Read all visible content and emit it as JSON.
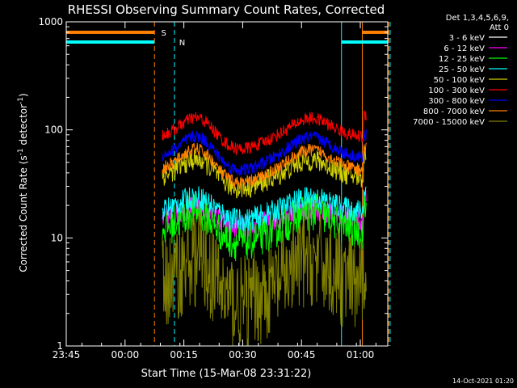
{
  "chart_data": {
    "type": "line",
    "title": "RHESSI Observing Summary Count Rates, Corrected",
    "xlabel": "Start Time (15-Mar-08 23:31:22)",
    "ylabel_main": "Corrected Count Rate (s",
    "ylabel_sup1": "-1",
    "ylabel_mid": " detector",
    "ylabel_sup2": "-1",
    "ylabel_end": ")",
    "yscale": "log",
    "ylim": [
      1,
      1000
    ],
    "xlim_minutes": [
      -24,
      58
    ],
    "xticks": [
      {
        "t": 0,
        "label": "23:45"
      },
      {
        "t": 15,
        "label": "00:00"
      },
      {
        "t": 30,
        "label": "00:15"
      },
      {
        "t": 45,
        "label": "00:30"
      },
      {
        "t": 60,
        "label": "00:45"
      },
      {
        "t": 75,
        "label": "01:00"
      }
    ],
    "yticks": [
      {
        "v": 1,
        "label": "1"
      },
      {
        "v": 10,
        "label": "10"
      },
      {
        "v": 100,
        "label": "100"
      },
      {
        "v": 1000,
        "label": "1000"
      }
    ],
    "legend_header": [
      "Det 1,3,4,5,6,9,",
      "Att 0"
    ],
    "legend_placement": "right",
    "flags": [
      {
        "label": "S",
        "color": "#ff8000",
        "level": 800
      },
      {
        "label": "N",
        "color": "#00ffff",
        "level": 650
      }
    ],
    "series": [
      {
        "name": "3 - 6 keV",
        "color": "#ffffff",
        "trace_color": "#000000",
        "base": 10,
        "amp": 1.6,
        "noise": 0.45
      },
      {
        "name": "6 - 12 keV",
        "color": "#ff00ff",
        "base": 14.5,
        "amp": 1.3,
        "noise": 0.22
      },
      {
        "name": "12 - 25 keV",
        "color": "#00ff00",
        "base": 11.5,
        "amp": 1.5,
        "noise": 0.35
      },
      {
        "name": "25 - 50 keV",
        "color": "#00ffff",
        "base": 17.5,
        "amp": 1.35,
        "noise": 0.22
      },
      {
        "name": "50 - 100 keV",
        "color": "#d0d000",
        "base": 36,
        "amp": 1.45,
        "noise": 0.2
      },
      {
        "name": "100 - 300 keV",
        "color": "#ff0000",
        "base": 85,
        "amp": 1.5,
        "noise": 0.12
      },
      {
        "name": "300 - 800 keV",
        "color": "#0000ff",
        "base": 55,
        "amp": 1.55,
        "noise": 0.12
      },
      {
        "name": "800 - 7000 keV",
        "color": "#ff8000",
        "base": 42,
        "amp": 1.55,
        "noise": 0.12
      },
      {
        "name": "7000 - 15000 keV",
        "color": "#808000",
        "base": 3.5,
        "amp": 1.8,
        "noise": 0.9
      }
    ],
    "date_stamp": "14-Oct-2021 01:20"
  }
}
